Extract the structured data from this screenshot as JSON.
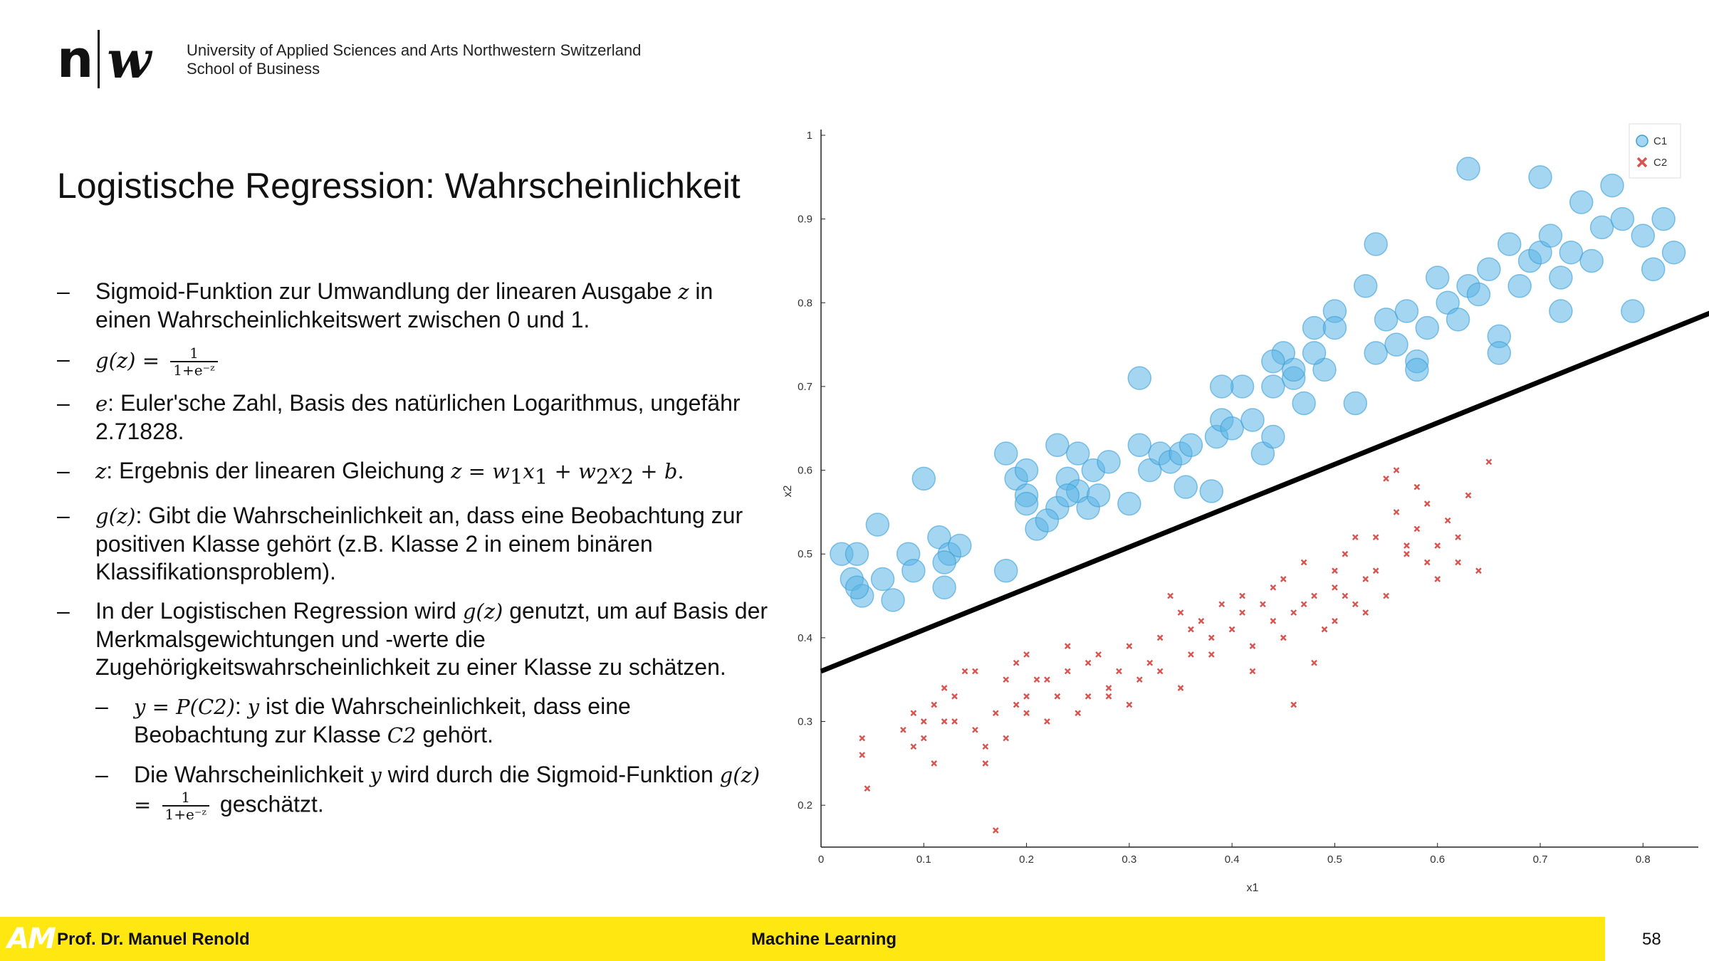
{
  "header": {
    "logo_n": "n",
    "logo_w": "w",
    "institution_line1": "University of Applied Sciences and Arts Northwestern Switzerland",
    "institution_line2": "School of Business"
  },
  "slide": {
    "title": "Logistische Regression: Wahrscheinlichkeit",
    "bullet_dash": "–",
    "b1_pre": "Sigmoid-Funktion zur Umwandlung der linearen Ausgabe ",
    "b1_var": "z",
    "b1_post": " in einen Wahrscheinlichkeitswert zwischen 0 und 1.",
    "b2_lhs": "g(z) = ",
    "frac_num": "1",
    "frac_den": "1+e⁻ᶻ",
    "b3_var": "e",
    "b3_text": ": Euler'sche Zahl, Basis des natürlichen Logarithmus, ungefähr 2.71828.",
    "b4_var": "z",
    "b4_text": ": Ergebnis der linearen Gleichung ",
    "b4_eq": "z = ",
    "b4_w1": "w",
    "b4_sub1": "1",
    "b4_x1": "x",
    "b4_sub1b": "1",
    "b4_plus": " + ",
    "b4_w2": "w",
    "b4_sub2": "2",
    "b4_x2": "x",
    "b4_sub2b": "2",
    "b4_plusb": " + ",
    "b4_b": "b",
    "b4_end": ".",
    "b5_var": "g(z)",
    "b5_text": ": Gibt die Wahrscheinlichkeit an, dass eine Beobachtung zur positiven Klasse gehört (z.B. Klasse 2 in einem binären Klassifikationsproblem).",
    "b6_pre": "In der Logistischen Regression wird ",
    "b6_var": "g(z)",
    "b6_post": " genutzt, um auf Basis der Merkmalsgewichtungen und -werte die Zugehörigkeitswahrscheinlichkeit zu einer Klasse zu schätzen.",
    "s1_math": "y = P(C2)",
    "s1_colon": ": ",
    "s1_var": "y",
    "s1_text": " ist die Wahrscheinlichkeit, dass eine Beobachtung zur Klasse ",
    "s1_class": "C2",
    "s1_end": " gehört.",
    "s2_pre": "Die Wahrscheinlichkeit ",
    "s2_var": "y",
    "s2_mid": " wird durch die Sigmoid-Funktion ",
    "s2_lhs": "g(z) = ",
    "s2_end": " geschätzt."
  },
  "chart_data": {
    "type": "scatter",
    "xlabel": "x1",
    "ylabel": "x2",
    "xlim": [
      0,
      0.84
    ],
    "ylim": [
      0.15,
      1.0
    ],
    "x_ticks": [
      "0",
      "0.1",
      "0.2",
      "0.3",
      "0.4",
      "0.5",
      "0.6",
      "0.7",
      "0.8"
    ],
    "y_ticks": [
      "0.2",
      "0.3",
      "0.4",
      "0.5",
      "0.6",
      "0.7",
      "0.8",
      "0.9",
      "1"
    ],
    "legend_position": "top-right",
    "grid": false,
    "decision_boundary": {
      "color": "#000000",
      "points": [
        [
          0,
          0.36
        ],
        [
          0.87,
          0.79
        ]
      ]
    },
    "series": [
      {
        "name": "C1",
        "marker": "circle",
        "color": "#5ab4e6",
        "points": [
          [
            0.02,
            0.5
          ],
          [
            0.03,
            0.47
          ],
          [
            0.035,
            0.5
          ],
          [
            0.04,
            0.45
          ],
          [
            0.035,
            0.46
          ],
          [
            0.055,
            0.535
          ],
          [
            0.06,
            0.47
          ],
          [
            0.07,
            0.445
          ],
          [
            0.085,
            0.5
          ],
          [
            0.1,
            0.59
          ],
          [
            0.09,
            0.48
          ],
          [
            0.115,
            0.52
          ],
          [
            0.125,
            0.5
          ],
          [
            0.135,
            0.51
          ],
          [
            0.12,
            0.49
          ],
          [
            0.12,
            0.46
          ],
          [
            0.18,
            0.62
          ],
          [
            0.19,
            0.59
          ],
          [
            0.2,
            0.6
          ],
          [
            0.2,
            0.57
          ],
          [
            0.2,
            0.56
          ],
          [
            0.18,
            0.48
          ],
          [
            0.21,
            0.53
          ],
          [
            0.23,
            0.63
          ],
          [
            0.24,
            0.59
          ],
          [
            0.25,
            0.62
          ],
          [
            0.25,
            0.575
          ],
          [
            0.23,
            0.555
          ],
          [
            0.24,
            0.57
          ],
          [
            0.22,
            0.54
          ],
          [
            0.26,
            0.555
          ],
          [
            0.265,
            0.6
          ],
          [
            0.27,
            0.57
          ],
          [
            0.28,
            0.61
          ],
          [
            0.3,
            0.56
          ],
          [
            0.31,
            0.63
          ],
          [
            0.32,
            0.6
          ],
          [
            0.33,
            0.62
          ],
          [
            0.34,
            0.61
          ],
          [
            0.35,
            0.62
          ],
          [
            0.36,
            0.63
          ],
          [
            0.355,
            0.58
          ],
          [
            0.38,
            0.575
          ],
          [
            0.385,
            0.64
          ],
          [
            0.39,
            0.66
          ],
          [
            0.4,
            0.65
          ],
          [
            0.41,
            0.7
          ],
          [
            0.42,
            0.66
          ],
          [
            0.43,
            0.62
          ],
          [
            0.44,
            0.64
          ],
          [
            0.44,
            0.7
          ],
          [
            0.45,
            0.74
          ],
          [
            0.46,
            0.71
          ],
          [
            0.47,
            0.68
          ],
          [
            0.48,
            0.77
          ],
          [
            0.49,
            0.72
          ],
          [
            0.5,
            0.79
          ],
          [
            0.52,
            0.68
          ],
          [
            0.53,
            0.82
          ],
          [
            0.54,
            0.74
          ],
          [
            0.55,
            0.78
          ],
          [
            0.56,
            0.75
          ],
          [
            0.57,
            0.79
          ],
          [
            0.58,
            0.73
          ],
          [
            0.59,
            0.77
          ],
          [
            0.6,
            0.83
          ],
          [
            0.61,
            0.8
          ],
          [
            0.62,
            0.78
          ],
          [
            0.63,
            0.82
          ],
          [
            0.64,
            0.81
          ],
          [
            0.65,
            0.84
          ],
          [
            0.66,
            0.76
          ],
          [
            0.67,
            0.87
          ],
          [
            0.68,
            0.82
          ],
          [
            0.69,
            0.85
          ],
          [
            0.7,
            0.86
          ],
          [
            0.71,
            0.88
          ],
          [
            0.72,
            0.83
          ],
          [
            0.73,
            0.86
          ],
          [
            0.74,
            0.92
          ],
          [
            0.75,
            0.85
          ],
          [
            0.76,
            0.89
          ],
          [
            0.77,
            0.94
          ],
          [
            0.78,
            0.9
          ],
          [
            0.79,
            0.79
          ],
          [
            0.8,
            0.88
          ],
          [
            0.81,
            0.84
          ],
          [
            0.82,
            0.9
          ],
          [
            0.83,
            0.86
          ],
          [
            0.7,
            0.95
          ],
          [
            0.63,
            0.96
          ],
          [
            0.5,
            0.77
          ],
          [
            0.44,
            0.73
          ],
          [
            0.31,
            0.71
          ],
          [
            0.54,
            0.87
          ],
          [
            0.66,
            0.74
          ],
          [
            0.72,
            0.79
          ],
          [
            0.58,
            0.72
          ],
          [
            0.48,
            0.74
          ],
          [
            0.46,
            0.72
          ],
          [
            0.39,
            0.7
          ]
        ]
      },
      {
        "name": "C2",
        "marker": "x",
        "color": "#d9534f",
        "points": [
          [
            0.04,
            0.28
          ],
          [
            0.04,
            0.26
          ],
          [
            0.045,
            0.22
          ],
          [
            0.08,
            0.29
          ],
          [
            0.09,
            0.31
          ],
          [
            0.1,
            0.3
          ],
          [
            0.1,
            0.28
          ],
          [
            0.11,
            0.32
          ],
          [
            0.12,
            0.3
          ],
          [
            0.13,
            0.33
          ],
          [
            0.14,
            0.36
          ],
          [
            0.15,
            0.29
          ],
          [
            0.16,
            0.27
          ],
          [
            0.17,
            0.31
          ],
          [
            0.18,
            0.35
          ],
          [
            0.19,
            0.32
          ],
          [
            0.2,
            0.33
          ],
          [
            0.2,
            0.38
          ],
          [
            0.21,
            0.35
          ],
          [
            0.22,
            0.3
          ],
          [
            0.23,
            0.33
          ],
          [
            0.24,
            0.36
          ],
          [
            0.25,
            0.31
          ],
          [
            0.26,
            0.33
          ],
          [
            0.27,
            0.38
          ],
          [
            0.28,
            0.34
          ],
          [
            0.29,
            0.36
          ],
          [
            0.3,
            0.32
          ],
          [
            0.31,
            0.35
          ],
          [
            0.32,
            0.37
          ],
          [
            0.33,
            0.4
          ],
          [
            0.34,
            0.45
          ],
          [
            0.35,
            0.43
          ],
          [
            0.36,
            0.38
          ],
          [
            0.37,
            0.42
          ],
          [
            0.38,
            0.4
          ],
          [
            0.39,
            0.44
          ],
          [
            0.4,
            0.41
          ],
          [
            0.41,
            0.45
          ],
          [
            0.42,
            0.39
          ],
          [
            0.43,
            0.44
          ],
          [
            0.44,
            0.42
          ],
          [
            0.45,
            0.47
          ],
          [
            0.46,
            0.43
          ],
          [
            0.47,
            0.49
          ],
          [
            0.48,
            0.45
          ],
          [
            0.49,
            0.41
          ],
          [
            0.5,
            0.46
          ],
          [
            0.51,
            0.5
          ],
          [
            0.52,
            0.44
          ],
          [
            0.53,
            0.47
          ],
          [
            0.54,
            0.52
          ],
          [
            0.55,
            0.45
          ],
          [
            0.56,
            0.55
          ],
          [
            0.57,
            0.5
          ],
          [
            0.58,
            0.53
          ],
          [
            0.59,
            0.56
          ],
          [
            0.6,
            0.51
          ],
          [
            0.61,
            0.54
          ],
          [
            0.62,
            0.49
          ],
          [
            0.63,
            0.57
          ],
          [
            0.64,
            0.48
          ],
          [
            0.65,
            0.61
          ],
          [
            0.56,
            0.6
          ],
          [
            0.58,
            0.58
          ],
          [
            0.55,
            0.59
          ],
          [
            0.52,
            0.52
          ],
          [
            0.5,
            0.48
          ],
          [
            0.48,
            0.37
          ],
          [
            0.46,
            0.32
          ],
          [
            0.42,
            0.36
          ],
          [
            0.38,
            0.38
          ],
          [
            0.35,
            0.34
          ],
          [
            0.3,
            0.39
          ],
          [
            0.28,
            0.33
          ],
          [
            0.26,
            0.37
          ],
          [
            0.22,
            0.35
          ],
          [
            0.2,
            0.31
          ],
          [
            0.18,
            0.28
          ],
          [
            0.16,
            0.25
          ],
          [
            0.17,
            0.17
          ],
          [
            0.15,
            0.36
          ],
          [
            0.13,
            0.3
          ],
          [
            0.12,
            0.34
          ],
          [
            0.09,
            0.27
          ],
          [
            0.11,
            0.25
          ],
          [
            0.19,
            0.37
          ],
          [
            0.24,
            0.39
          ],
          [
            0.33,
            0.36
          ],
          [
            0.36,
            0.41
          ],
          [
            0.41,
            0.43
          ],
          [
            0.44,
            0.46
          ],
          [
            0.47,
            0.44
          ],
          [
            0.51,
            0.45
          ],
          [
            0.54,
            0.48
          ],
          [
            0.57,
            0.51
          ],
          [
            0.6,
            0.47
          ],
          [
            0.62,
            0.52
          ],
          [
            0.59,
            0.49
          ],
          [
            0.53,
            0.43
          ],
          [
            0.5,
            0.42
          ],
          [
            0.45,
            0.4
          ]
        ]
      }
    ]
  },
  "footer": {
    "logo": "AM",
    "author": "Prof. Dr. Manuel Renold",
    "course": "Machine Learning",
    "page_number": "58"
  }
}
